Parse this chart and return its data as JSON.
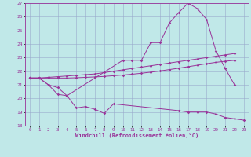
{
  "xlabel": "Windchill (Refroidissement éolien,°C)",
  "background_color": "#c0e8e8",
  "line_color": "#993399",
  "grid_color": "#99aacc",
  "xlim": [
    -0.5,
    23.5
  ],
  "ylim": [
    18,
    27
  ],
  "xticks": [
    0,
    1,
    2,
    3,
    4,
    5,
    6,
    7,
    8,
    9,
    10,
    11,
    12,
    13,
    14,
    15,
    16,
    17,
    18,
    19,
    20,
    21,
    22,
    23
  ],
  "yticks": [
    18,
    19,
    20,
    21,
    22,
    23,
    24,
    25,
    26,
    27
  ],
  "line1_x": [
    0,
    1,
    2,
    3,
    4,
    5,
    6,
    7,
    8,
    9,
    16,
    17,
    18,
    19,
    20,
    21,
    22,
    23
  ],
  "line1_y": [
    21.5,
    21.5,
    21.0,
    20.3,
    20.2,
    19.3,
    19.4,
    19.2,
    18.9,
    19.6,
    19.1,
    19.0,
    19.0,
    19.0,
    18.85,
    18.6,
    18.5,
    18.4
  ],
  "line2_x": [
    0,
    1,
    2,
    3,
    4,
    10,
    11,
    12,
    13,
    14,
    15,
    16,
    17,
    18,
    19,
    20,
    21,
    22
  ],
  "line2_y": [
    21.5,
    21.5,
    21.0,
    20.8,
    20.2,
    22.8,
    22.8,
    22.8,
    24.1,
    24.1,
    25.55,
    26.3,
    27.0,
    26.6,
    25.8,
    23.5,
    22.2,
    21.0
  ],
  "line3_x": [
    0,
    1,
    2,
    3,
    4,
    5,
    6,
    7,
    8,
    9,
    10,
    11,
    12,
    13,
    14,
    15,
    16,
    17,
    18,
    19,
    20,
    21,
    22
  ],
  "line3_y": [
    21.5,
    21.5,
    21.55,
    21.6,
    21.65,
    21.7,
    21.75,
    21.8,
    21.9,
    22.0,
    22.1,
    22.2,
    22.3,
    22.4,
    22.5,
    22.6,
    22.7,
    22.8,
    22.9,
    23.0,
    23.1,
    23.2,
    23.3
  ],
  "line4_x": [
    0,
    1,
    2,
    3,
    4,
    5,
    6,
    7,
    8,
    9,
    10,
    11,
    12,
    13,
    14,
    15,
    16,
    17,
    18,
    19,
    20,
    21,
    22
  ],
  "line4_y": [
    21.5,
    21.5,
    21.5,
    21.5,
    21.5,
    21.52,
    21.55,
    21.58,
    21.62,
    21.67,
    21.72,
    21.78,
    21.85,
    21.93,
    22.02,
    22.12,
    22.22,
    22.33,
    22.44,
    22.55,
    22.65,
    22.73,
    22.8
  ]
}
